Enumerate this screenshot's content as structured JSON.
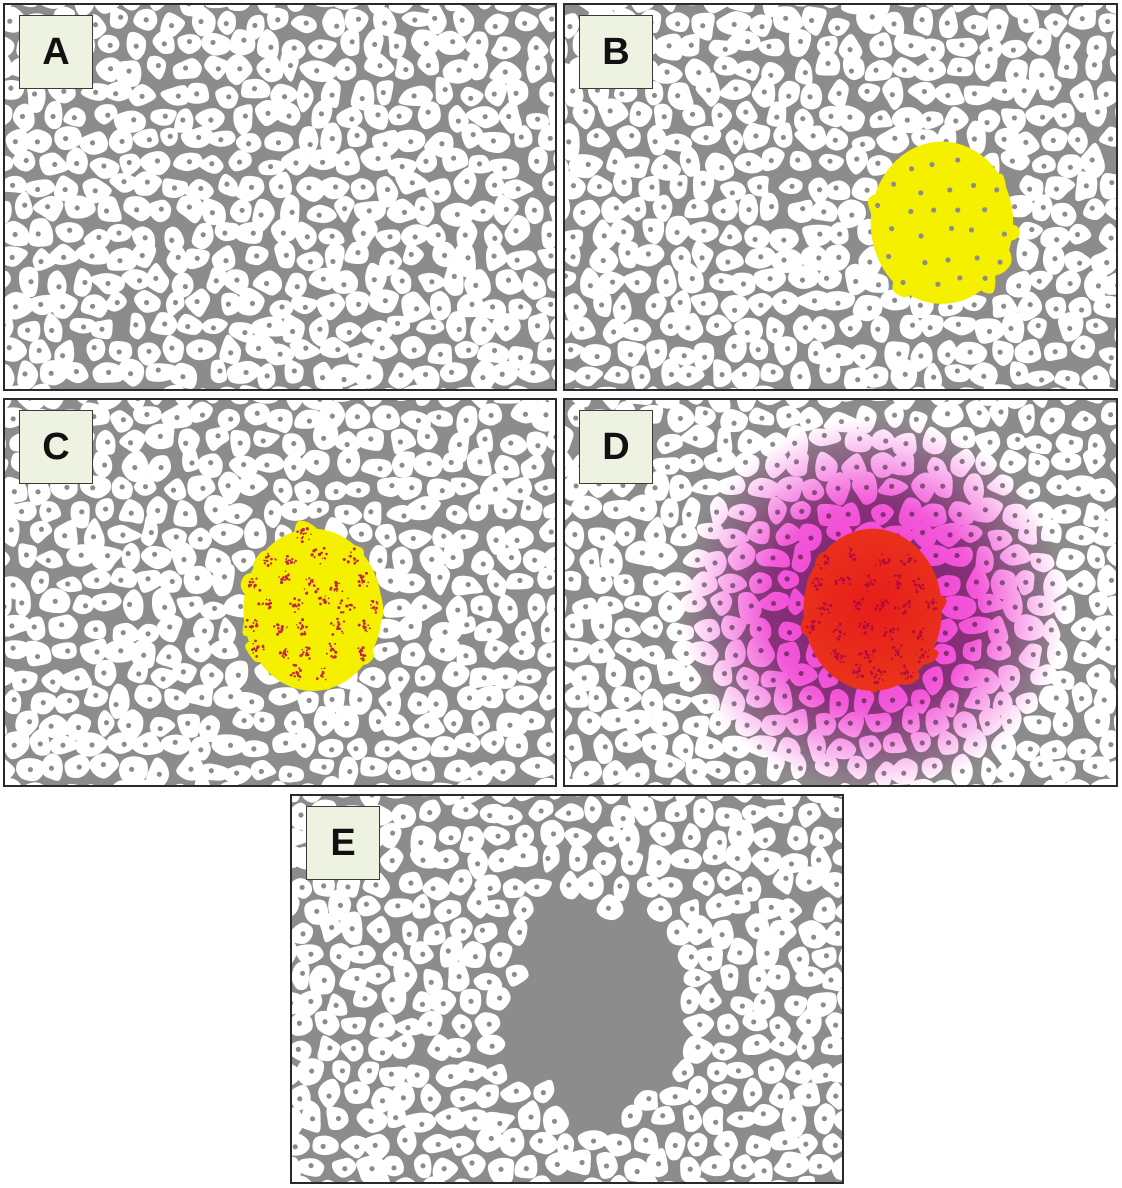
{
  "panels": [
    {
      "id": "a",
      "label": "A",
      "stage": "normal-tissue"
    },
    {
      "id": "b",
      "label": "B",
      "stage": "highlighted-cell-cluster",
      "cluster_color": "#f5f000"
    },
    {
      "id": "c",
      "label": "C",
      "stage": "speckled-cell-cluster",
      "cluster_color": "#f5f000",
      "speckle_color": "#c0264a"
    },
    {
      "id": "d",
      "label": "D",
      "stage": "cluster-with-magenta-halo",
      "cluster_color": "#f7a020",
      "halo_color": "#ee22cc"
    },
    {
      "id": "e",
      "label": "E",
      "stage": "cells-removed-gap"
    }
  ],
  "colors": {
    "background": "#8c8c8c",
    "cell": "#ffffff",
    "nucleus": "#8c8c8c",
    "label_box": "#eef3e1"
  }
}
